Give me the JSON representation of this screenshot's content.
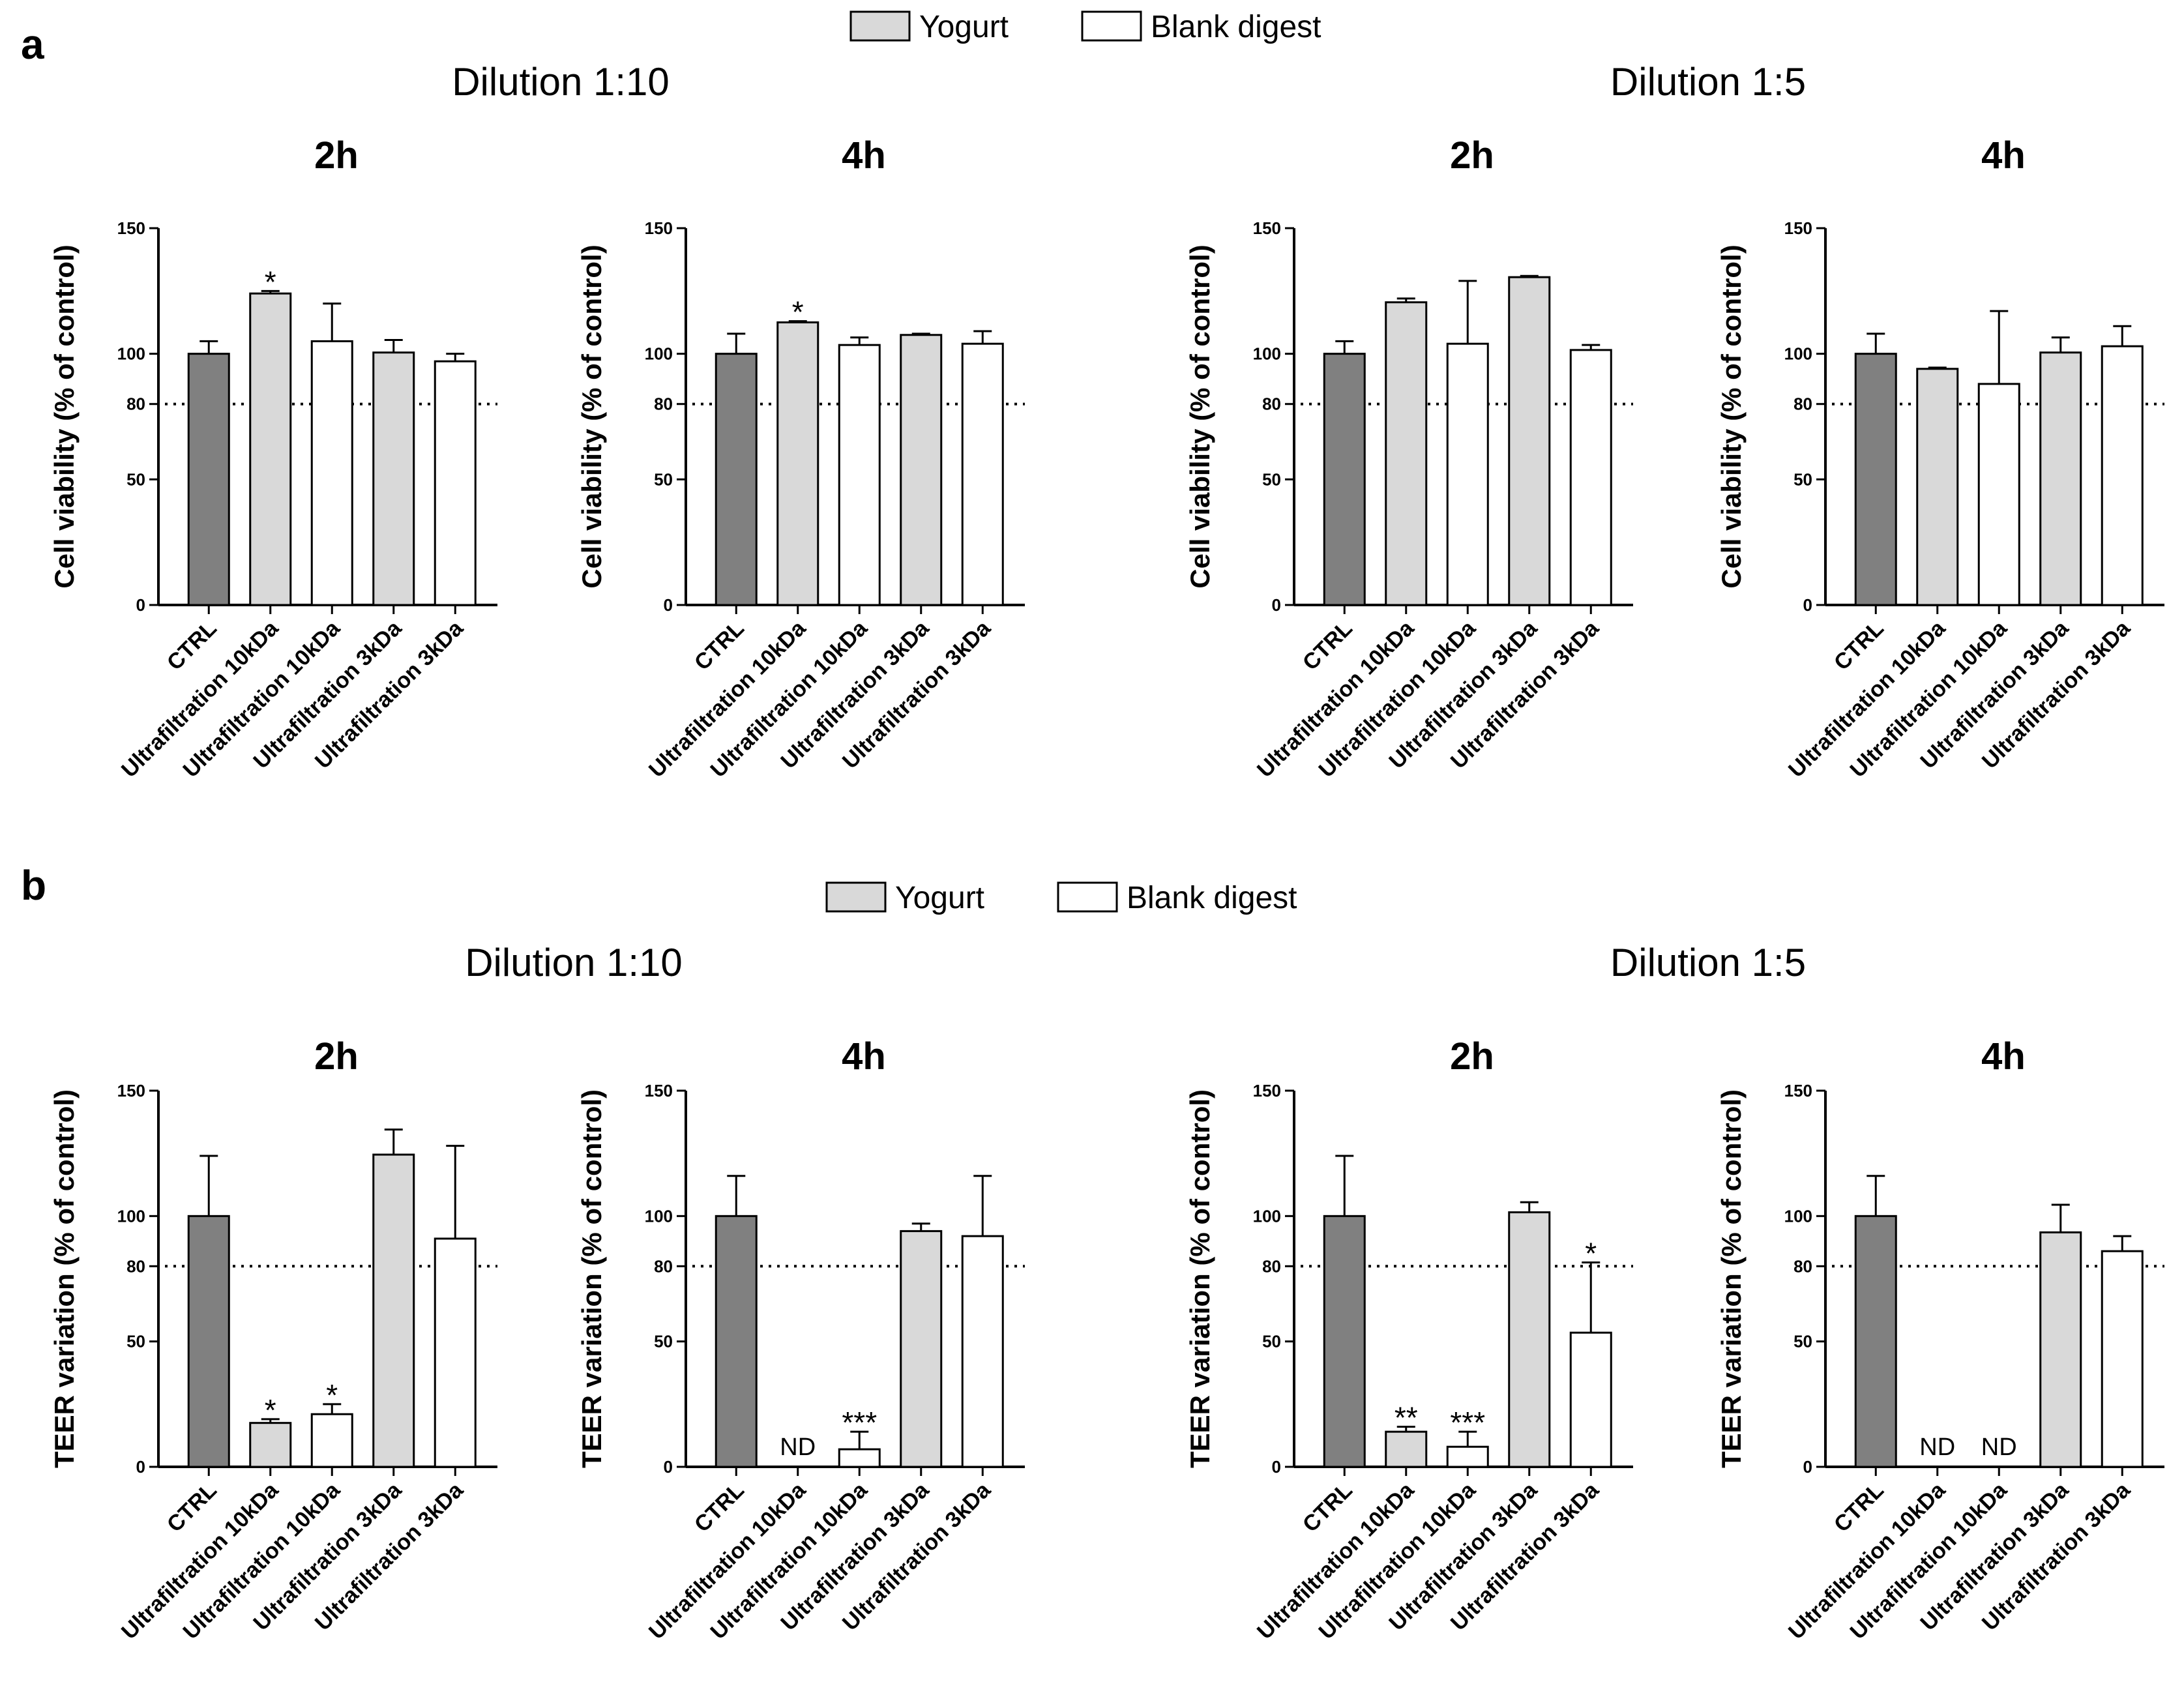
{
  "colors": {
    "ctrl": "#808080",
    "yogurt": "#d9d9d9",
    "blank": "#ffffff",
    "stroke": "#000000"
  },
  "legend": {
    "yogurt_label": "Yogurt",
    "blank_label": "Blank digest"
  },
  "panels": [
    {
      "letter": "a",
      "ylabel": "Cell viability (% of control)",
      "dilution_titles": [
        "Dilution 1:10",
        "Dilution 1:5"
      ]
    },
    {
      "letter": "b",
      "ylabel": "TEER variation (% of control)",
      "dilution_titles": [
        "Dilution 1:10",
        "Dilution 1:5"
      ]
    }
  ],
  "chart_data": [
    {
      "type": "bar",
      "panel": "a",
      "dilution": "Dilution 1:10",
      "title": "2h",
      "ylabel": "Cell viability (% of control)",
      "ylim": [
        0,
        150
      ],
      "yticks": [
        0,
        50,
        80,
        100,
        150
      ],
      "reference_line": 80,
      "categories": [
        "CTRL",
        "Ultrafiltration 10kDa",
        "Ultrafiltration 10kDa",
        "Ultrafiltration 3kDa",
        "Ultrafiltration 3kDa"
      ],
      "groups": [
        "ctrl",
        "yogurt",
        "blank",
        "yogurt",
        "blank"
      ],
      "values": [
        100,
        124,
        105,
        100.5,
        97
      ],
      "errors": [
        5,
        1,
        15,
        5,
        3
      ],
      "annotations": [
        "",
        "*",
        "",
        "",
        ""
      ]
    },
    {
      "type": "bar",
      "panel": "a",
      "dilution": "Dilution 1:10",
      "title": "4h",
      "ylabel": "Cell viability (% of control)",
      "ylim": [
        0,
        150
      ],
      "yticks": [
        0,
        50,
        80,
        100,
        150
      ],
      "reference_line": 80,
      "categories": [
        "CTRL",
        "Ultrafiltration 10kDa",
        "Ultrafiltration 10kDa",
        "Ultrafiltration 3kDa",
        "Ultrafiltration 3kDa"
      ],
      "groups": [
        "ctrl",
        "yogurt",
        "blank",
        "yogurt",
        "blank"
      ],
      "values": [
        100,
        112.5,
        103.5,
        107.5,
        104
      ],
      "errors": [
        8,
        0.5,
        3,
        0.5,
        5
      ],
      "annotations": [
        "",
        "*",
        "",
        "",
        ""
      ]
    },
    {
      "type": "bar",
      "panel": "a",
      "dilution": "Dilution 1:5",
      "title": "2h",
      "ylabel": "Cell viability (% of control)",
      "ylim": [
        0,
        150
      ],
      "yticks": [
        0,
        50,
        80,
        100,
        150
      ],
      "reference_line": 80,
      "categories": [
        "CTRL",
        "Ultrafiltration 10kDa",
        "Ultrafiltration 10kDa",
        "Ultrafiltration 3kDa",
        "Ultrafiltration 3kDa"
      ],
      "groups": [
        "ctrl",
        "yogurt",
        "blank",
        "yogurt",
        "blank"
      ],
      "values": [
        100,
        120.5,
        104,
        130.5,
        101.5
      ],
      "errors": [
        5,
        1.5,
        25,
        0.5,
        2
      ],
      "annotations": [
        "",
        "",
        "",
        "",
        ""
      ]
    },
    {
      "type": "bar",
      "panel": "a",
      "dilution": "Dilution 1:5",
      "title": "4h",
      "ylabel": "Cell viability (% of control)",
      "ylim": [
        0,
        150
      ],
      "yticks": [
        0,
        50,
        80,
        100,
        150
      ],
      "reference_line": 80,
      "categories": [
        "CTRL",
        "Ultrafiltration 10kDa",
        "Ultrafiltration 10kDa",
        "Ultrafiltration 3kDa",
        "Ultrafiltration 3kDa"
      ],
      "groups": [
        "ctrl",
        "yogurt",
        "blank",
        "yogurt",
        "blank"
      ],
      "values": [
        100,
        94,
        88,
        100.5,
        103
      ],
      "errors": [
        8,
        0.5,
        29,
        6,
        8
      ],
      "annotations": [
        "",
        "",
        "",
        "",
        ""
      ]
    },
    {
      "type": "bar",
      "panel": "b",
      "dilution": "Dilution 1:10",
      "title": "2h",
      "ylabel": "TEER variation (% of control)",
      "ylim": [
        0,
        150
      ],
      "yticks": [
        0,
        50,
        80,
        100,
        150
      ],
      "reference_line": 80,
      "categories": [
        "CTRL",
        "Ultrafiltration 10kDa",
        "Ultrafiltration 10kDa",
        "Ultrafiltration 3kDa",
        "Ultrafiltration 3kDa"
      ],
      "groups": [
        "ctrl",
        "yogurt",
        "blank",
        "yogurt",
        "blank"
      ],
      "values": [
        100,
        17.5,
        21,
        124.5,
        91
      ],
      "errors": [
        24,
        1.5,
        4,
        10,
        37
      ],
      "annotations": [
        "",
        "*",
        "*",
        "",
        ""
      ]
    },
    {
      "type": "bar",
      "panel": "b",
      "dilution": "Dilution 1:10",
      "title": "4h",
      "ylabel": "TEER variation (% of control)",
      "ylim": [
        0,
        150
      ],
      "yticks": [
        0,
        50,
        80,
        100,
        150
      ],
      "reference_line": 80,
      "categories": [
        "CTRL",
        "Ultrafiltration 10kDa",
        "Ultrafiltration 10kDa",
        "Ultrafiltration 3kDa",
        "Ultrafiltration 3kDa"
      ],
      "groups": [
        "ctrl",
        "yogurt",
        "blank",
        "yogurt",
        "blank"
      ],
      "values": [
        100,
        0,
        7,
        94,
        92
      ],
      "errors": [
        16,
        0,
        7,
        3,
        24
      ],
      "annotations": [
        "",
        "ND",
        "***",
        "",
        ""
      ]
    },
    {
      "type": "bar",
      "panel": "b",
      "dilution": "Dilution 1:5",
      "title": "2h",
      "ylabel": "TEER variation (% of control)",
      "ylim": [
        0,
        150
      ],
      "yticks": [
        0,
        50,
        80,
        100,
        150
      ],
      "reference_line": 80,
      "categories": [
        "CTRL",
        "Ultrafiltration 10kDa",
        "Ultrafiltration 10kDa",
        "Ultrafiltration 3kDa",
        "Ultrafiltration 3kDa"
      ],
      "groups": [
        "ctrl",
        "yogurt",
        "blank",
        "yogurt",
        "blank"
      ],
      "values": [
        100,
        14,
        8,
        101.5,
        53.5
      ],
      "errors": [
        24,
        2,
        6,
        4,
        28
      ],
      "annotations": [
        "",
        "**",
        "***",
        "",
        "*"
      ]
    },
    {
      "type": "bar",
      "panel": "b",
      "dilution": "Dilution 1:5",
      "title": "4h",
      "ylabel": "TEER variation (% of control)",
      "ylim": [
        0,
        150
      ],
      "yticks": [
        0,
        50,
        80,
        100,
        150
      ],
      "reference_line": 80,
      "categories": [
        "CTRL",
        "Ultrafiltration 10kDa",
        "Ultrafiltration 10kDa",
        "Ultrafiltration 3kDa",
        "Ultrafiltration 3kDa"
      ],
      "groups": [
        "ctrl",
        "yogurt",
        "blank",
        "yogurt",
        "blank"
      ],
      "values": [
        100,
        0,
        0,
        93.5,
        86
      ],
      "errors": [
        16,
        0,
        0,
        11,
        6
      ],
      "annotations": [
        "",
        "ND",
        "ND",
        "",
        ""
      ]
    }
  ]
}
